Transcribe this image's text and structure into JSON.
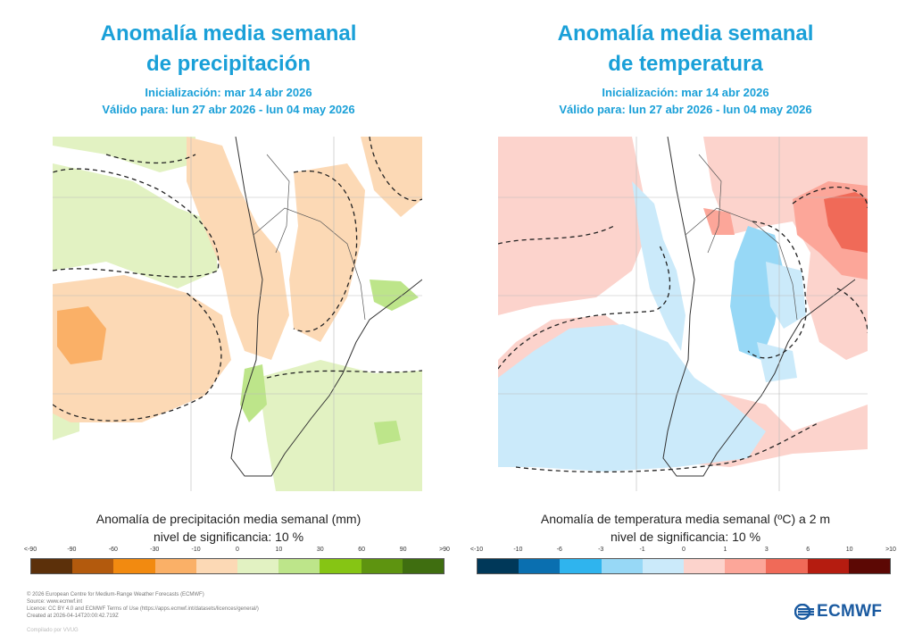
{
  "left_panel": {
    "title_line1": "Anomalía media semanal",
    "title_line2": "de precipitación",
    "init": "Inicialización: mar 14 abr 2026",
    "valid": "Válido para: lun 27 abr 2026 - lun 04 may 2026",
    "legend_title": "Anomalía de precipitación media semanal (mm)",
    "significance": "nivel de significancia: 10 %",
    "ticks": [
      "<-90",
      "-90",
      "-60",
      "-30",
      "-10",
      "0",
      "10",
      "30",
      "60",
      "90",
      ">90"
    ],
    "colors": [
      "#5c300a",
      "#b35a0d",
      "#f28a10",
      "#fab067",
      "#fcd9b5",
      "#e2f2c2",
      "#bde58a",
      "#86c514",
      "#5e9410",
      "#3f6e10"
    ]
  },
  "right_panel": {
    "title_line1": "Anomalía media semanal",
    "title_line2": "de temperatura",
    "init": "Inicialización: mar 14 abr 2026",
    "valid": "Válido para: lun 27 abr 2026 - lun 04 may 2026",
    "legend_title": "Anomalía de temperatura media semanal (ºC) a 2 m",
    "significance": "nivel de significancia: 10 %",
    "ticks": [
      "<-10",
      "-10",
      "-6",
      "-3",
      "-1",
      "0",
      "1",
      "3",
      "6",
      "10",
      ">10"
    ],
    "colors": [
      "#003859",
      "#0a6fb0",
      "#2fb4ee",
      "#97d8f6",
      "#cbeafa",
      "#fcd3cc",
      "#fca699",
      "#f06a58",
      "#b51c10",
      "#5c0804"
    ]
  },
  "footer": {
    "line1": "© 2026 European Centre for Medium-Range Weather Forecasts (ECMWF)",
    "line2": "Source: www.ecmwf.int",
    "line3": "Licence: CC BY 4.0 and ECMWF Terms of Use (https://apps.ecmwf.int/datasets/licences/general/)",
    "line4": "Created at 2026-04-14T20:00:42.719Z",
    "compiled": "Compilado por VVUG"
  },
  "logo": {
    "text": "ECMWF"
  }
}
